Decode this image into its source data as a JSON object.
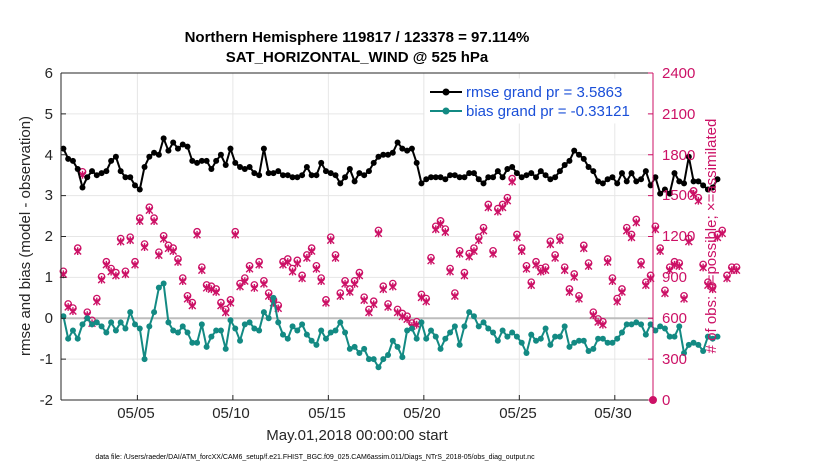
{
  "chart_data": {
    "type": "line",
    "title_line1": "Northern Hemisphere 119817 / 123378 = 97.114%",
    "title_line2": "SAT_HORIZONTAL_WIND @ 525 hPa",
    "xlabel": "May.01,2018 00:00:00 start",
    "ylabel_left": "rmse and bias (model - observation)",
    "ylabel_right": "# of obs: o=possible; ×=assimilated",
    "ylim_left": [
      -2,
      6
    ],
    "ylim_right": [
      0,
      2400
    ],
    "xlim": [
      1.0,
      32.0
    ],
    "x_tick_values": [
      5,
      10,
      15,
      20,
      25,
      30
    ],
    "x_tick_labels": [
      "05/05",
      "05/10",
      "05/15",
      "05/20",
      "05/25",
      "05/30"
    ],
    "y_tick_labels_left": [
      "-2",
      "-1",
      "0",
      "1",
      "2",
      "3",
      "4",
      "5",
      "6"
    ],
    "y_tick_labels_right": [
      "0",
      "300",
      "600",
      "900",
      "1200",
      "1500",
      "1800",
      "2100",
      "2400"
    ],
    "legend": [
      "rmse grand pr = 3.5863",
      "bias grand pr = -0.33121"
    ],
    "legend_location": "top-right",
    "colors": {
      "rmse": "#000000",
      "bias": "#138a83",
      "obs": "#cc1166",
      "zero_line": "#bdbdbd",
      "grid": "#e6e6e6",
      "legend_text": "#1a4fd8"
    },
    "series": [
      {
        "name": "rmse",
        "x_start": 1.125,
        "x_step": 0.25,
        "values": [
          4.15,
          3.9,
          3.85,
          3.65,
          3.2,
          3.45,
          3.6,
          3.5,
          3.55,
          3.6,
          3.85,
          3.95,
          3.6,
          3.45,
          3.45,
          3.25,
          3.15,
          3.7,
          3.95,
          4.05,
          4.0,
          4.4,
          4.1,
          4.3,
          4.15,
          4.25,
          4.2,
          3.85,
          3.8,
          3.85,
          3.85,
          3.65,
          3.85,
          4.0,
          3.75,
          4.15,
          3.8,
          3.7,
          3.65,
          3.7,
          3.55,
          3.5,
          4.15,
          3.55,
          3.55,
          3.6,
          3.5,
          3.5,
          3.45,
          3.45,
          3.5,
          3.7,
          3.5,
          3.5,
          3.8,
          3.6,
          3.55,
          3.5,
          3.3,
          3.45,
          3.65,
          3.35,
          3.55,
          3.5,
          3.6,
          3.8,
          3.95,
          4.0,
          4.0,
          4.05,
          4.3,
          4.15,
          4.1,
          4.15,
          3.8,
          3.3,
          3.4,
          3.45,
          3.45,
          3.45,
          3.4,
          3.5,
          3.5,
          3.45,
          3.45,
          3.55,
          3.55,
          3.4,
          3.3,
          3.45,
          3.45,
          3.6,
          3.45,
          3.65,
          3.7,
          3.55,
          3.45,
          3.5,
          3.55,
          3.45,
          3.6,
          3.5,
          3.4,
          3.45,
          3.6,
          3.75,
          3.85,
          4.1,
          4.0,
          3.9,
          3.7,
          3.6,
          3.35,
          3.3,
          3.4,
          3.45,
          3.3,
          3.55,
          3.35,
          3.55,
          3.35,
          3.4,
          3.6,
          3.25,
          3.45,
          3.05,
          3.15,
          3.05,
          3.55,
          3.35,
          3.3,
          3.95,
          3.35,
          3.35,
          3.25,
          3.15,
          3.2,
          3.4
        ]
      },
      {
        "name": "bias",
        "x_start": 1.125,
        "x_step": 0.25,
        "values": [
          0.05,
          -0.5,
          -0.3,
          -0.5,
          -0.15,
          0.0,
          -0.15,
          -0.1,
          -0.2,
          -0.35,
          -0.1,
          -0.3,
          -0.1,
          -0.25,
          0.15,
          -0.15,
          -0.25,
          -1.0,
          -0.2,
          0.15,
          0.75,
          0.85,
          -0.1,
          -0.3,
          -0.35,
          -0.2,
          -0.35,
          -0.6,
          -0.6,
          -0.15,
          -0.7,
          -0.45,
          -0.3,
          -0.3,
          -0.75,
          -0.05,
          -0.25,
          -0.55,
          -0.15,
          -0.1,
          -0.25,
          -0.3,
          0.15,
          0.0,
          0.5,
          -0.1,
          -0.4,
          -0.5,
          -0.2,
          -0.3,
          -0.15,
          -0.4,
          -0.55,
          -0.65,
          -0.3,
          -0.5,
          -0.35,
          -0.3,
          -0.1,
          -0.35,
          -0.75,
          -0.7,
          -0.85,
          -0.75,
          -1.0,
          -1.0,
          -1.2,
          -1.0,
          -0.9,
          -0.55,
          -0.7,
          -0.95,
          -0.3,
          -0.25,
          -0.5,
          -0.1,
          -0.5,
          -0.3,
          -0.45,
          -0.75,
          -0.5,
          -0.35,
          -0.2,
          -0.65,
          -0.2,
          0.15,
          0.05,
          -0.2,
          -0.1,
          -0.25,
          -0.35,
          -0.55,
          -0.3,
          -0.45,
          -0.35,
          -0.45,
          -0.6,
          -0.85,
          -0.4,
          -0.55,
          -0.5,
          -0.25,
          -0.65,
          -0.45,
          -0.45,
          -0.2,
          -0.7,
          -0.6,
          -0.55,
          -0.55,
          -0.8,
          -0.75,
          -0.5,
          -0.5,
          -0.6,
          -0.6,
          -0.5,
          -0.35,
          -0.15,
          -0.15,
          -0.1,
          -0.15,
          -0.4,
          -0.15,
          -0.3,
          -0.2,
          -0.25,
          -0.45,
          -0.45,
          -0.2,
          -0.85,
          -0.65,
          -0.6,
          -0.65,
          -0.8,
          -0.45,
          -0.5,
          -0.45
        ]
      },
      {
        "name": "obs_count",
        "x_start": 1.125,
        "x_step": 0.25,
        "values": [
          930,
          690,
          660,
          1100,
          1660,
          630,
          570,
          730,
          890,
          1000,
          950,
          920,
          1170,
          930,
          1180,
          1000,
          1320,
          1130,
          1400,
          1320,
          1070,
          1190,
          1120,
          1100,
          1020,
          880,
          750,
          700,
          1220,
          960,
          830,
          820,
          800,
          700,
          650,
          720,
          1220,
          840,
          880,
          970,
          830,
          1000,
          860,
          770,
          720,
          680,
          1000,
          1020,
          950,
          1010,
          900,
          1050,
          1100,
          970,
          880,
          720,
          1180,
          1050,
          770,
          860,
          800,
          860,
          920,
          740,
          650,
          710,
          1230,
          820,
          690,
          840,
          650,
          620,
          600,
          550,
          560,
          760,
          730,
          1030,
          1260,
          1300,
          1240,
          950,
          770,
          1080,
          920,
          1060,
          1100,
          1180,
          1250,
          1420,
          1080,
          1390,
          1420,
          1470,
          1610,
          1200,
          1100,
          970,
          850,
          1000,
          950,
          960,
          1150,
          1050,
          1180,
          960,
          800,
          910,
          750,
          1120,
          990,
          630,
          580,
          560,
          1020,
          880,
          730,
          800,
          1250,
          1200,
          1310,
          1000,
          850,
          900,
          1260,
          1100,
          790,
          960,
          1000,
          990,
          750,
          1170,
          1520,
          1470,
          980,
          850,
          820,
          1200,
          1230,
          900,
          960,
          960
        ]
      }
    ]
  },
  "footer_text": "data file: /Users/raeder/DAI/ATM_forcXX/CAM6_setup/f.e21.FHIST_BGC.f09_025.CAM6assim.011/Diags_NTrS_2018-05/obs_diag_output.nc"
}
